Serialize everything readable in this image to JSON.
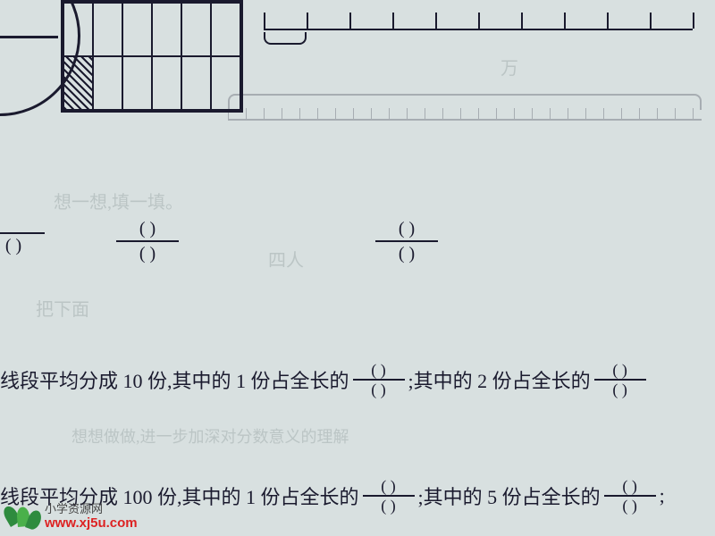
{
  "grid": {
    "rows": 2,
    "cols": 6,
    "hatched_cell": {
      "row": 1,
      "col": 0
    }
  },
  "number_line": {
    "ticks": 11,
    "spacing_px": 48,
    "brace_span_ticks": 1
  },
  "fraction_blanks": {
    "f1": {
      "num": "(    )",
      "den": "(    )"
    },
    "f2": {
      "num": "(    )",
      "den": "(    )"
    },
    "f3": {
      "num": "(    )",
      "den": "(    )"
    }
  },
  "line1": {
    "prefix": "线段平均分成 10 份,其中的 1 份占全长的",
    "mid": ";其中的 2 份占全长的"
  },
  "line2": {
    "prefix": "线段平均分成 100 份,其中的 1 份占全长的",
    "mid": ";其中的 5 份占全长的",
    "tail": ";"
  },
  "ghost_texts": {
    "g1": "想一想,填一填。",
    "g2": "万",
    "g3": "把下面",
    "g4": "四人"
  },
  "watermark": {
    "cn": "小学资源网",
    "url": "www.xj5u.com"
  },
  "colors": {
    "bg": "#d8e0e0",
    "ink": "#1a1a2e",
    "ghost": "#5a6a6a",
    "wm_red": "#d22",
    "wm_green1": "#2e8b3e",
    "wm_green2": "#4ab04a"
  }
}
